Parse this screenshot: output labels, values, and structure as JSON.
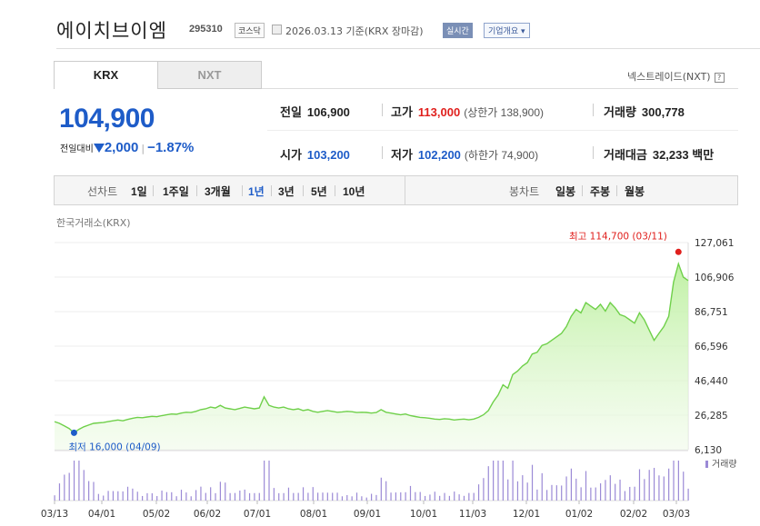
{
  "header": {
    "stock_name": "에이치브이엠",
    "stock_code": "295310",
    "market_badge": "코스닥",
    "basis_text": "2026.03.13 기준(KRX 장마감)",
    "realtime_badge": "실시간",
    "company_button": "기업개요 ▾"
  },
  "tabs": [
    {
      "label": "KRX",
      "active": true
    },
    {
      "label": "NXT",
      "active": false
    }
  ],
  "nxt_link": "넥스트레이드(NXT)",
  "help_icon": "?",
  "price": {
    "current": "104,900",
    "change_label": "전일대비",
    "change_amount": "2,000",
    "change_percent": "−1.87%",
    "direction": "down"
  },
  "info": {
    "prev_close": {
      "label": "전일",
      "value": "106,900"
    },
    "high": {
      "label": "고가",
      "value": "113,000",
      "sub": "(상한가 138,900)"
    },
    "volume": {
      "label": "거래량",
      "value": "300,778"
    },
    "open": {
      "label": "시가",
      "value": "103,200"
    },
    "low": {
      "label": "저가",
      "value": "102,200",
      "sub": "(하한가 74,900)"
    },
    "trade_value": {
      "label": "거래대금",
      "value": "32,233",
      "unit": "백만"
    }
  },
  "toolbar": {
    "line_label": "선차트",
    "periods": [
      "1일",
      "1주일",
      "3개월",
      "1년",
      "3년",
      "5년",
      "10년"
    ],
    "active_period": "1년",
    "candle_label": "봉차트",
    "candles": [
      "일봉",
      "주봉",
      "월봉"
    ]
  },
  "exchange_label": "한국거래소(KRX)",
  "colors": {
    "up": "#e0201d",
    "down": "#1e5cc8",
    "line": "#6fd04a",
    "fill_top": "#bdf0a0",
    "fill_bottom": "#f0fbe9",
    "volume": "#9b8ad6"
  },
  "chart_data": {
    "type": "area",
    "title": "",
    "y_ticks": [
      "127,061",
      "106,906",
      "86,751",
      "66,596",
      "46,440",
      "26,285",
      "6,130"
    ],
    "ylim": [
      6130,
      127061
    ],
    "x_ticks": [
      "03/13",
      "04/01",
      "05/02",
      "06/02",
      "07/01",
      "08/01",
      "09/01",
      "10/01",
      "11/03",
      "12/01",
      "01/02",
      "02/02",
      "03/03"
    ],
    "max_annotation": "최고 114,700 (03/11)",
    "min_annotation": "최저 16,000 (04/09)",
    "volume_legend": "거래량",
    "price_series": [
      22500,
      21500,
      20000,
      18500,
      16000,
      18000,
      19500,
      20500,
      21500,
      21800,
      22000,
      22500,
      23000,
      23500,
      23000,
      23800,
      24500,
      25000,
      24800,
      25200,
      25600,
      25400,
      26000,
      26500,
      27000,
      26800,
      27500,
      28000,
      27800,
      28500,
      29500,
      30000,
      31000,
      30500,
      32000,
      30500,
      30000,
      29500,
      30200,
      31000,
      30500,
      30000,
      30500,
      37000,
      32000,
      31000,
      30500,
      31000,
      30000,
      29500,
      30000,
      29000,
      29500,
      28500,
      28000,
      28500,
      29000,
      28500,
      28000,
      28200,
      28500,
      28300,
      27800,
      28000,
      27900,
      27500,
      27800,
      29500,
      28000,
      27500,
      27000,
      26500,
      27000,
      26000,
      25500,
      25000,
      24800,
      24500,
      24000,
      23800,
      24200,
      24000,
      23500,
      23800,
      24000,
      23600,
      24000,
      25000,
      26500,
      29000,
      34000,
      38000,
      44000,
      42000,
      50000,
      52000,
      55000,
      57000,
      62000,
      63000,
      67000,
      68000,
      70000,
      72000,
      74000,
      78000,
      84000,
      88000,
      86000,
      92000,
      90000,
      88000,
      91000,
      87000,
      92000,
      89000,
      85000,
      84000,
      82000,
      80000,
      86000,
      82000,
      76000,
      70000,
      74000,
      78000,
      84000,
      104000,
      114700,
      106900,
      104900
    ]
  }
}
